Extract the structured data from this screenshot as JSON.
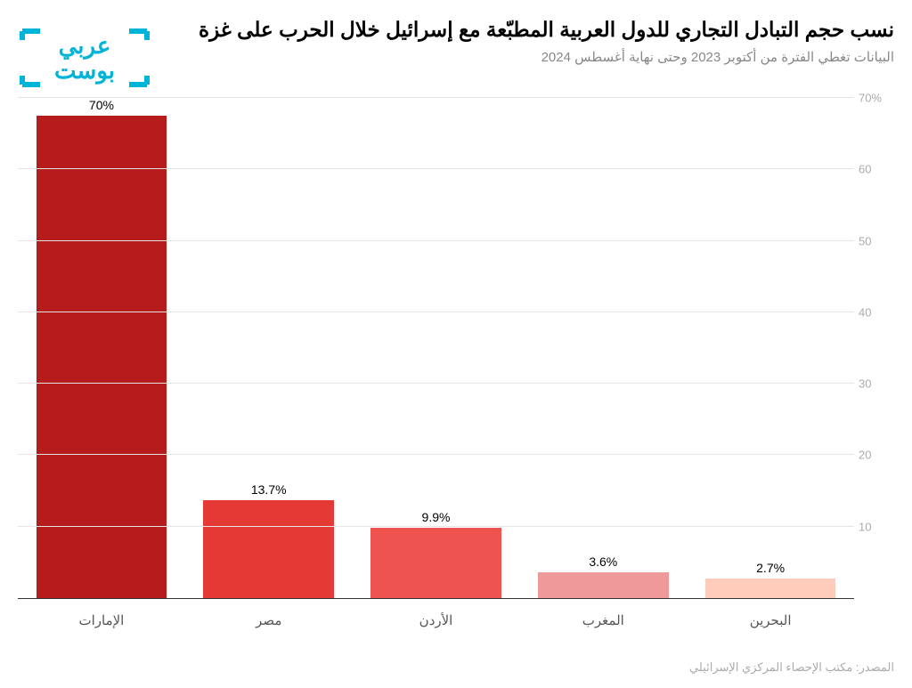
{
  "chart": {
    "type": "bar",
    "title": "نسب حجم التبادل التجاري للدول العربية المطبّعة مع إسرائيل خلال الحرب على غزة",
    "subtitle": "البيانات تغطي الفترة من أكتوبر 2023 وحتى نهاية أغسطس 2024",
    "source": "المصدر: مكتب الإحصاء المركزي الإسرائيلي",
    "logo_text_top": "عربي",
    "logo_text_bottom": "بوست",
    "logo_color": "#00b4d8",
    "y_axis": {
      "min": 0,
      "max": 70,
      "ticks": [
        10,
        20,
        30,
        40,
        50,
        60,
        70
      ],
      "tick_labels": [
        "10",
        "20",
        "30",
        "40",
        "50",
        "60",
        "70%"
      ],
      "grid_color": "#e5e5e5",
      "label_color": "#aaaaaa",
      "label_fontsize": 13
    },
    "categories": [
      "الإمارات",
      "مصر",
      "الأردن",
      "المغرب",
      "البحرين"
    ],
    "values": [
      70,
      13.7,
      9.9,
      3.6,
      2.7
    ],
    "value_labels": [
      "70%",
      "13.7%",
      "9.9%",
      "3.6%",
      "2.7%"
    ],
    "bar_colors": [
      "#b71c1c",
      "#e53935",
      "#ef5350",
      "#ef9a9a",
      "#ffccbc"
    ],
    "bar_width_pct": 78,
    "background_color": "#ffffff",
    "axis_line_color": "#333333",
    "title_fontsize": 23,
    "subtitle_fontsize": 15,
    "subtitle_color": "#888888",
    "xlabel_fontsize": 15,
    "xlabel_color": "#555555",
    "value_label_fontsize": 14,
    "value_label_color": "#000000",
    "source_fontsize": 13,
    "source_color": "#aaaaaa"
  }
}
